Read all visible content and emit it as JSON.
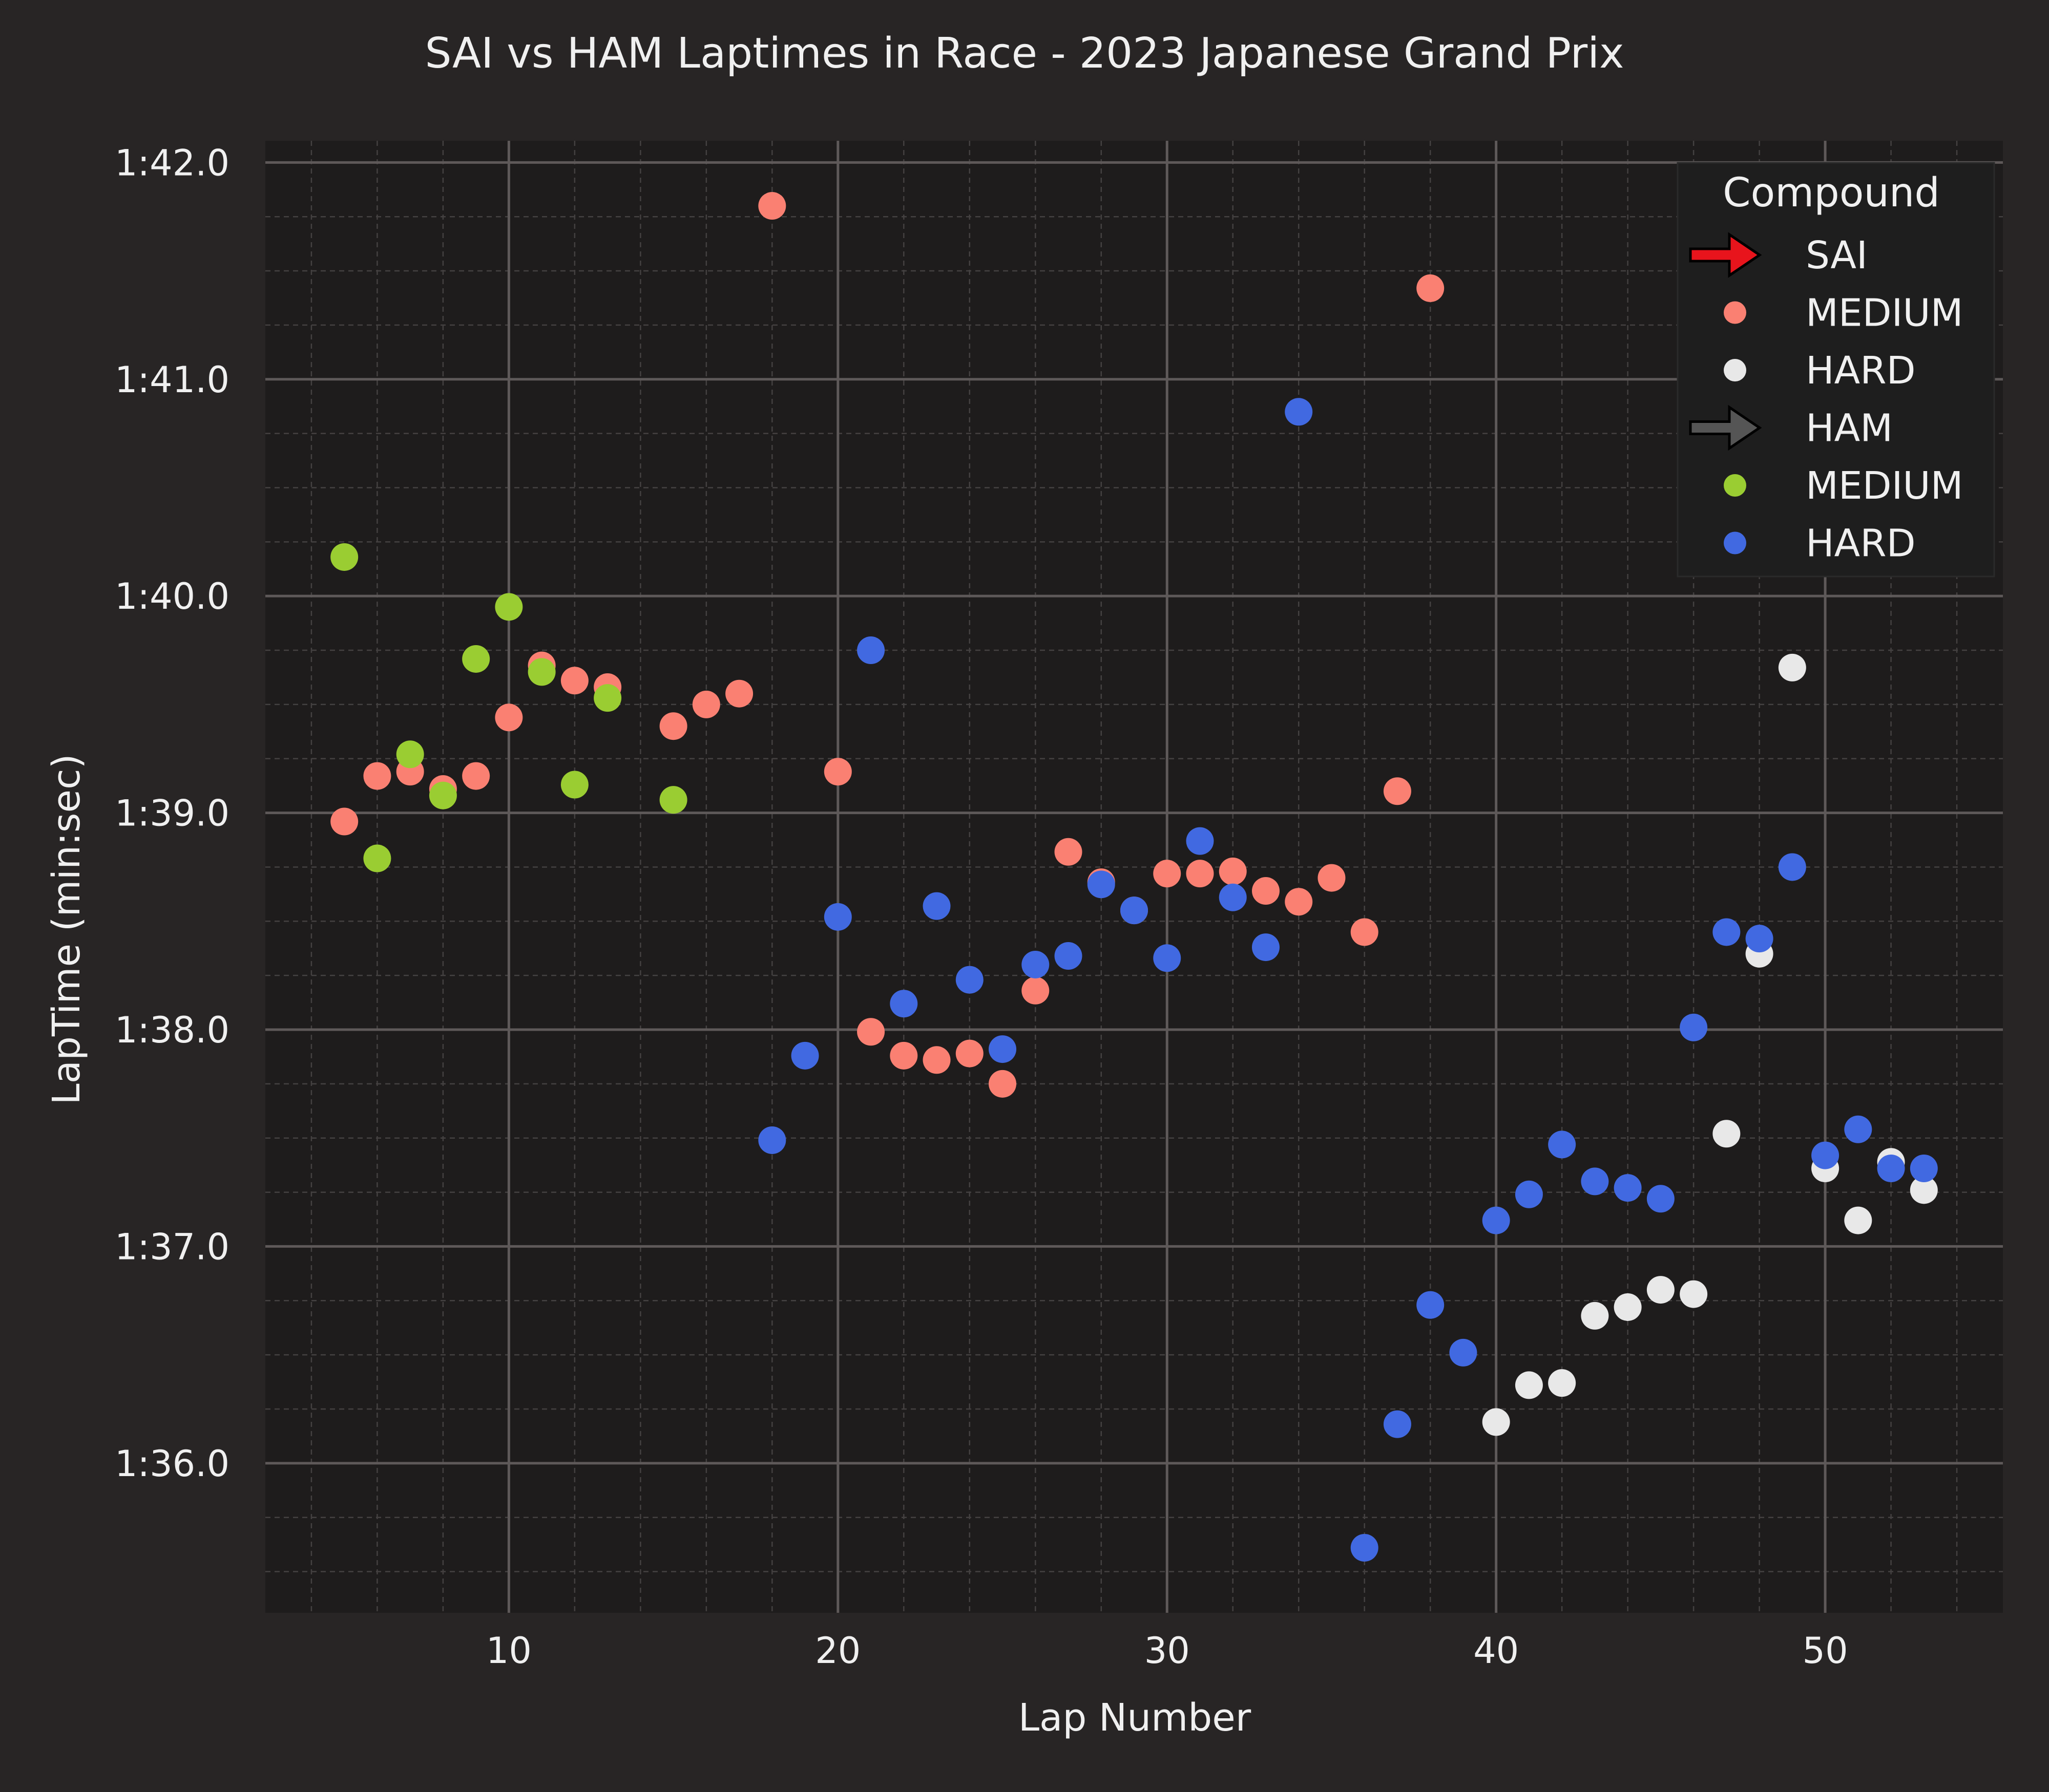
{
  "chart_data": {
    "type": "scatter",
    "title": "SAI vs HAM Laptimes in Race - 2023 Japanese Grand Prix",
    "xlabel": "Lap Number",
    "ylabel": "LapTime (min:sec)",
    "xlim": [
      2.6,
      55.4
    ],
    "ylim": [
      95.31,
      102.1
    ],
    "xticks": [
      10,
      20,
      30,
      40,
      50
    ],
    "yticks": [
      {
        "value": 96,
        "label": "1:36.0"
      },
      {
        "value": 97,
        "label": "1:37.0"
      },
      {
        "value": 98,
        "label": "1:38.0"
      },
      {
        "value": 99,
        "label": "1:39.0"
      },
      {
        "value": 100,
        "label": "1:40.0"
      },
      {
        "value": 101,
        "label": "1:41.0"
      },
      {
        "value": 102,
        "label": "1:42.0"
      }
    ],
    "grid": true,
    "legend_title": "Compound",
    "legend_position": "top-right",
    "drivers": [
      {
        "name": "SAI",
        "arrow_color": "#e8141c"
      },
      {
        "name": "HAM",
        "arrow_color": "#555555"
      }
    ],
    "series": [
      {
        "driver": "SAI",
        "name": "MEDIUM",
        "color": "#fa8072",
        "points": [
          [
            5,
            98.96
          ],
          [
            6,
            99.17
          ],
          [
            7,
            99.19
          ],
          [
            8,
            99.11
          ],
          [
            9,
            99.17
          ],
          [
            10,
            99.44
          ],
          [
            11,
            99.68
          ],
          [
            12,
            99.61
          ],
          [
            13,
            99.58
          ],
          [
            15,
            99.4
          ],
          [
            16,
            99.5
          ],
          [
            17,
            99.55
          ],
          [
            18,
            101.8
          ],
          [
            20,
            99.19
          ],
          [
            21,
            97.99
          ],
          [
            22,
            97.88
          ],
          [
            23,
            97.86
          ],
          [
            24,
            97.89
          ],
          [
            25,
            97.75
          ],
          [
            26,
            98.18
          ],
          [
            27,
            98.82
          ],
          [
            28,
            98.68
          ],
          [
            29,
            98.55
          ],
          [
            30,
            98.72
          ],
          [
            31,
            98.72
          ],
          [
            32,
            98.73
          ],
          [
            33,
            98.64
          ],
          [
            34,
            98.59
          ],
          [
            35,
            98.7
          ],
          [
            36,
            98.45
          ],
          [
            37,
            99.1
          ],
          [
            38,
            101.42
          ]
        ]
      },
      {
        "driver": "SAI",
        "name": "HARD",
        "color": "#e8e8e8",
        "points": [
          [
            40,
            96.19
          ],
          [
            41,
            96.36
          ],
          [
            42,
            96.37
          ],
          [
            43,
            96.68
          ],
          [
            44,
            96.72
          ],
          [
            45,
            96.8
          ],
          [
            46,
            96.78
          ],
          [
            47,
            97.52
          ],
          [
            48,
            98.35
          ],
          [
            49,
            99.67
          ],
          [
            50,
            97.36
          ],
          [
            51,
            97.12
          ],
          [
            52,
            97.39
          ],
          [
            53,
            97.26
          ]
        ]
      },
      {
        "driver": "HAM",
        "name": "MEDIUM",
        "color": "#9acd32",
        "points": [
          [
            5,
            100.18
          ],
          [
            6,
            98.79
          ],
          [
            7,
            99.27
          ],
          [
            8,
            99.08
          ],
          [
            9,
            99.71
          ],
          [
            10,
            99.95
          ],
          [
            11,
            99.65
          ],
          [
            12,
            99.13
          ],
          [
            13,
            99.53
          ],
          [
            15,
            99.06
          ]
        ]
      },
      {
        "driver": "HAM",
        "name": "HARD",
        "color": "#4169e1",
        "points": [
          [
            18,
            97.49
          ],
          [
            19,
            97.88
          ],
          [
            20,
            98.52
          ],
          [
            21,
            99.75
          ],
          [
            22,
            98.12
          ],
          [
            23,
            98.57
          ],
          [
            24,
            98.23
          ],
          [
            25,
            97.91
          ],
          [
            26,
            98.3
          ],
          [
            27,
            98.34
          ],
          [
            28,
            98.67
          ],
          [
            29,
            98.55
          ],
          [
            30,
            98.33
          ],
          [
            31,
            98.87
          ],
          [
            32,
            98.61
          ],
          [
            33,
            98.38
          ],
          [
            34,
            100.85
          ],
          [
            36,
            95.61
          ],
          [
            37,
            96.18
          ],
          [
            38,
            96.73
          ],
          [
            39,
            96.51
          ],
          [
            40,
            97.12
          ],
          [
            41,
            97.24
          ],
          [
            42,
            97.47
          ],
          [
            43,
            97.3
          ],
          [
            44,
            97.27
          ],
          [
            45,
            97.22
          ],
          [
            46,
            98.01
          ],
          [
            47,
            98.45
          ],
          [
            48,
            98.42
          ],
          [
            49,
            98.75
          ],
          [
            50,
            97.42
          ],
          [
            51,
            97.54
          ],
          [
            52,
            97.36
          ],
          [
            53,
            97.36
          ]
        ]
      }
    ]
  }
}
